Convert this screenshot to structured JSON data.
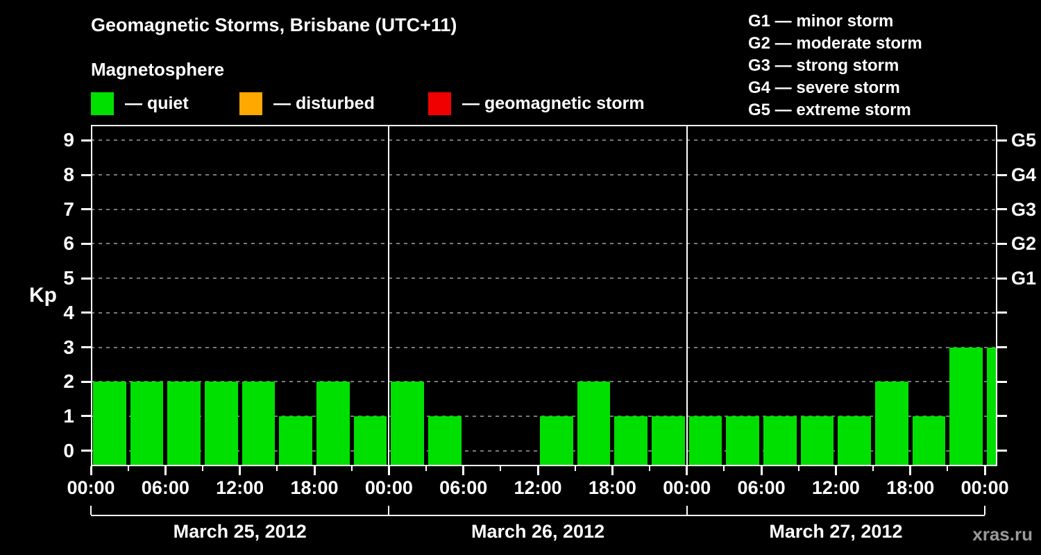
{
  "title": "Geomagnetic Storms, Brisbane (UTC+11)",
  "subtitle": "Magnetosphere",
  "legend": [
    {
      "label": "— quiet",
      "color": "#00e000"
    },
    {
      "label": "— disturbed",
      "color": "#ffa800"
    },
    {
      "label": "— geomagnetic storm",
      "color": "#f00000"
    }
  ],
  "g_scale_legend": [
    "G1 — minor storm",
    "G2 — moderate storm",
    "G3 — strong storm",
    "G4 — severe storm",
    "G5 — extreme storm"
  ],
  "watermark": "xras.ru",
  "colors": {
    "background": "#000000",
    "axis": "#ffffff",
    "grid": "#7a7a7a",
    "watermark": "#9a9a9a"
  },
  "chart_data": {
    "type": "bar",
    "title": "Geomagnetic Storms, Brisbane (UTC+11)",
    "ylabel": "Kp",
    "ylim": [
      -0.45,
      9.45
    ],
    "y_ticks": [
      0,
      1,
      2,
      3,
      4,
      5,
      6,
      7,
      8,
      9
    ],
    "right_axis": [
      {
        "value": 5,
        "label": "G1"
      },
      {
        "value": 6,
        "label": "G2"
      },
      {
        "value": 7,
        "label": "G3"
      },
      {
        "value": 8,
        "label": "G4"
      },
      {
        "value": 9,
        "label": "G5"
      }
    ],
    "interval_hours": 3,
    "total_hours": 72,
    "x_tick_hours": [
      0,
      6,
      12,
      18,
      24,
      30,
      36,
      42,
      48,
      54,
      60,
      66,
      72
    ],
    "x_tick_labels": [
      "00:00",
      "06:00",
      "12:00",
      "18:00",
      "00:00",
      "06:00",
      "12:00",
      "18:00",
      "00:00",
      "06:00",
      "12:00",
      "18:00",
      "00:00"
    ],
    "day_boundary_hours": [
      24,
      48
    ],
    "days": [
      {
        "date": "March 25, 2012",
        "kp_values": [
          2,
          2,
          2,
          2,
          2,
          1,
          2,
          1
        ]
      },
      {
        "date": "March 26, 2012",
        "kp_values": [
          2,
          1,
          null,
          null,
          1,
          2,
          1,
          1
        ]
      },
      {
        "date": "March 27, 2012",
        "kp_values": [
          1,
          1,
          1,
          1,
          1,
          2,
          1,
          3
        ]
      }
    ],
    "next_period_partial_kp": 3,
    "kp_thresholds": {
      "disturbed": 4,
      "storm": 5
    }
  }
}
